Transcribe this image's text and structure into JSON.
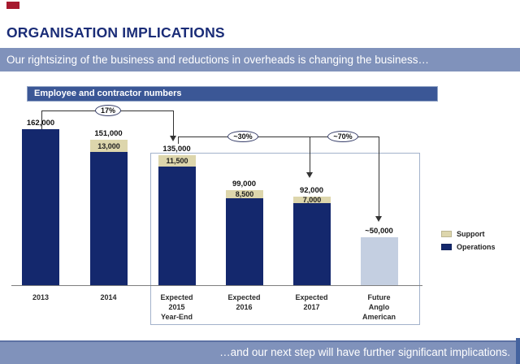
{
  "slide": {
    "title": "ORGANISATION IMPLICATIONS",
    "subtitle_banner": "Our rightsizing of the business and reductions in overheads is changing the business…",
    "footer_banner": "…and our next step will have further significant implications."
  },
  "chart_data": {
    "type": "bar",
    "stacked": true,
    "title": "Employee and contractor numbers",
    "ylim": [
      0,
      170000
    ],
    "grid": false,
    "legend_position": "right",
    "categories": [
      "2013",
      "2014",
      "Expected\n2015\nYear-End",
      "Expected\n2016",
      "Expected\n2017",
      "Future\nAnglo\nAmerican"
    ],
    "bars": [
      {
        "category": "2013",
        "total": 162000,
        "total_label": "162,000",
        "support": 0,
        "support_label": "",
        "style": "operations"
      },
      {
        "category": "2014",
        "total": 151000,
        "total_label": "151,000",
        "support": 13000,
        "support_label": "13,000",
        "style": "stacked"
      },
      {
        "category": "Expected 2015 Year-End",
        "total": 135000,
        "total_label": "135,000",
        "support": 11500,
        "support_label": "11,500",
        "style": "stacked"
      },
      {
        "category": "Expected 2016",
        "total": 99000,
        "total_label": "99,000",
        "support": 8500,
        "support_label": "8,500",
        "style": "stacked"
      },
      {
        "category": "Expected 2017",
        "total": 92000,
        "total_label": "92,000",
        "support": 7000,
        "support_label": "7,000",
        "style": "stacked"
      },
      {
        "category": "Future Anglo American",
        "total": 50000,
        "total_label": "~50,000",
        "support": 0,
        "support_label": "",
        "style": "future"
      }
    ],
    "series": [
      {
        "name": "Support",
        "color": "#ddd6ac",
        "values": [
          0,
          13000,
          11500,
          8500,
          7000,
          0
        ]
      },
      {
        "name": "Operations",
        "color": "#14286d",
        "values": [
          162000,
          138000,
          123500,
          90500,
          85000,
          50000
        ]
      }
    ],
    "annotations": [
      {
        "label": "17%",
        "from": "2013",
        "to": "Expected 2015 Year-End"
      },
      {
        "label": "~30%",
        "from": "Expected 2015 Year-End",
        "to": "Expected 2017"
      },
      {
        "label": "~70%",
        "from": "Expected 2017",
        "to": "Future Anglo American"
      }
    ],
    "legend": [
      {
        "label": "Support",
        "color": "#ddd6ac"
      },
      {
        "label": "Operations",
        "color": "#14286d"
      }
    ]
  },
  "colors": {
    "operations": "#14286d",
    "support": "#ddd6ac",
    "future": "#c4cfe1",
    "banner": "#8092bb",
    "chart_header_bg": "#3b5796",
    "title_text": "#1a2c77",
    "logo_red": "#a6192e"
  }
}
